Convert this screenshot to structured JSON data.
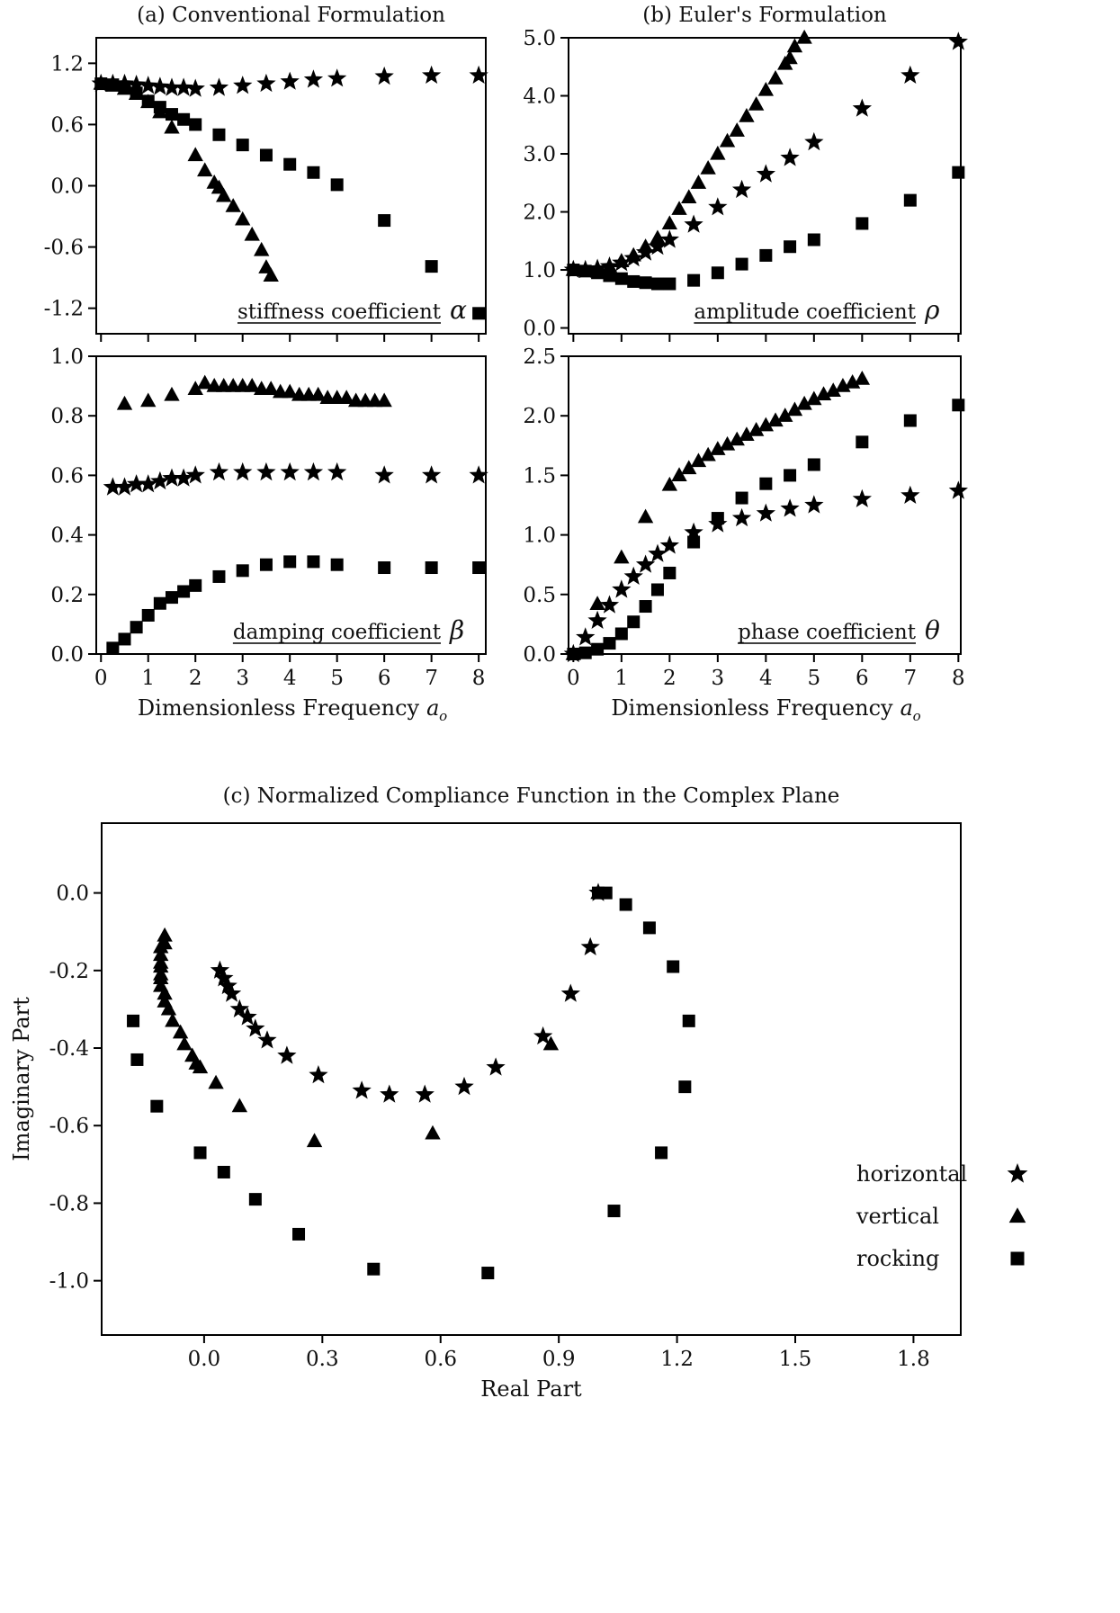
{
  "chart_data": [
    {
      "id": "a-top",
      "type": "scatter",
      "title": "(a) Conventional Formulation",
      "xlabel": "",
      "ylabel": "",
      "annotation": "stiffness coefficient",
      "annotation_symbol": "α",
      "xlim": [
        -0.1,
        8.15
      ],
      "ylim": [
        -1.45,
        1.45
      ],
      "xticks": [
        0,
        1,
        2,
        3,
        4,
        5,
        6,
        7,
        8
      ],
      "xtick_labels": [],
      "yticks": [
        1.2,
        0.6,
        0.0,
        -0.6,
        -1.2
      ],
      "ytick_labels": [
        "1.2",
        "0.6",
        "0.0",
        "-0.6",
        "-1.2"
      ],
      "series": [
        {
          "marker": "star",
          "x": [
            0,
            0.25,
            0.5,
            0.75,
            1,
            1.25,
            1.5,
            1.75,
            2,
            2.5,
            3,
            3.5,
            4,
            4.5,
            5,
            6,
            7,
            8
          ],
          "y": [
            1.0,
            1.0,
            1.0,
            0.99,
            0.98,
            0.97,
            0.96,
            0.96,
            0.95,
            0.96,
            0.98,
            1.0,
            1.02,
            1.04,
            1.05,
            1.07,
            1.08,
            1.08
          ]
        },
        {
          "marker": "triangle",
          "x": [
            0,
            0.25,
            0.5,
            0.75,
            1.0,
            1.25,
            1.5,
            2.0,
            2.2,
            2.4,
            2.5,
            2.6,
            2.8,
            3.0,
            3.2,
            3.4,
            3.5,
            3.6
          ],
          "y": [
            1.0,
            0.98,
            0.95,
            0.9,
            0.82,
            0.72,
            0.57,
            0.3,
            0.15,
            0.03,
            -0.02,
            -0.1,
            -0.2,
            -0.33,
            -0.48,
            -0.63,
            -0.8,
            -0.88
          ]
        },
        {
          "marker": "square",
          "x": [
            0,
            0.25,
            0.5,
            0.75,
            1.0,
            1.25,
            1.5,
            1.75,
            2.0,
            2.5,
            3.0,
            3.5,
            4.0,
            4.5,
            5.0,
            6.0,
            7.0,
            8.0
          ],
          "y": [
            1.0,
            0.99,
            0.96,
            0.91,
            0.83,
            0.77,
            0.7,
            0.65,
            0.6,
            0.5,
            0.4,
            0.3,
            0.21,
            0.13,
            0.01,
            -0.34,
            -0.79,
            -1.25
          ]
        }
      ]
    },
    {
      "id": "a-bottom",
      "type": "scatter",
      "title": "",
      "xlabel": "Dimensionless Frequency",
      "xlabel_symbol": "a",
      "xlabel_sub": "o",
      "ylabel": "",
      "annotation": "damping coefficient",
      "annotation_symbol": "β",
      "xlim": [
        -0.1,
        8.15
      ],
      "ylim": [
        0.0,
        1.0
      ],
      "xticks": [
        0,
        1,
        2,
        3,
        4,
        5,
        6,
        7,
        8
      ],
      "xtick_labels": [
        "0",
        "1",
        "2",
        "3",
        "4",
        "5",
        "6",
        "7",
        "8"
      ],
      "yticks": [
        0.0,
        0.2,
        0.4,
        0.6,
        0.8,
        1.0
      ],
      "ytick_labels": [
        "0.0",
        "0.2",
        "0.4",
        "0.6",
        "0.8",
        "1.0"
      ],
      "series": [
        {
          "marker": "triangle",
          "x": [
            0.5,
            1.0,
            1.5,
            2.0,
            2.2,
            2.4,
            2.6,
            2.8,
            3.0,
            3.2,
            3.4,
            3.6,
            3.8,
            4.0,
            4.2,
            4.4,
            4.6,
            4.8,
            5.0,
            5.2,
            5.4,
            5.6,
            5.8,
            6.0
          ],
          "y": [
            0.84,
            0.85,
            0.87,
            0.89,
            0.91,
            0.9,
            0.9,
            0.9,
            0.9,
            0.9,
            0.89,
            0.89,
            0.88,
            0.88,
            0.87,
            0.87,
            0.87,
            0.86,
            0.86,
            0.86,
            0.85,
            0.85,
            0.85,
            0.85
          ]
        },
        {
          "marker": "star",
          "x": [
            0.25,
            0.5,
            0.75,
            1.0,
            1.25,
            1.5,
            1.75,
            2.0,
            2.5,
            3.0,
            3.5,
            4.0,
            4.5,
            5.0,
            6.0,
            7.0,
            8.0
          ],
          "y": [
            0.56,
            0.56,
            0.57,
            0.57,
            0.58,
            0.59,
            0.59,
            0.6,
            0.61,
            0.61,
            0.61,
            0.61,
            0.61,
            0.61,
            0.6,
            0.6,
            0.6
          ]
        },
        {
          "marker": "square",
          "x": [
            0.25,
            0.5,
            0.75,
            1.0,
            1.25,
            1.5,
            1.75,
            2.0,
            2.5,
            3.0,
            3.5,
            4.0,
            4.5,
            5.0,
            6.0,
            7.0,
            8.0
          ],
          "y": [
            0.02,
            0.05,
            0.09,
            0.13,
            0.17,
            0.19,
            0.21,
            0.23,
            0.26,
            0.28,
            0.3,
            0.31,
            0.31,
            0.3,
            0.29,
            0.29,
            0.29
          ]
        }
      ]
    },
    {
      "id": "b-top",
      "type": "scatter",
      "title": "(b) Euler's Formulation",
      "xlabel": "",
      "ylabel": "",
      "annotation": "amplitude coefficient",
      "annotation_symbol": "ρ",
      "xlim": [
        -0.1,
        8.05
      ],
      "ylim": [
        -0.1,
        5.0
      ],
      "xticks": [
        0,
        1,
        2,
        3,
        4,
        5,
        6,
        7,
        8
      ],
      "xtick_labels": [],
      "yticks": [
        0.0,
        1.0,
        2.0,
        3.0,
        4.0,
        5.0
      ],
      "ytick_labels": [
        "0.0",
        "1.0",
        "2.0",
        "3.0",
        "4.0",
        "5.0"
      ],
      "series": [
        {
          "marker": "triangle",
          "x": [
            0,
            0.25,
            0.5,
            0.75,
            1.0,
            1.25,
            1.5,
            1.75,
            2.0,
            2.2,
            2.4,
            2.6,
            2.8,
            3.0,
            3.2,
            3.4,
            3.6,
            3.8,
            4.0,
            4.2,
            4.4,
            4.5,
            4.6,
            4.8
          ],
          "y": [
            1.0,
            1.0,
            1.02,
            1.06,
            1.15,
            1.25,
            1.4,
            1.55,
            1.8,
            2.05,
            2.25,
            2.5,
            2.75,
            3.0,
            3.22,
            3.4,
            3.65,
            3.85,
            4.1,
            4.3,
            4.55,
            4.65,
            4.85,
            5.0
          ]
        },
        {
          "marker": "star",
          "x": [
            0,
            0.25,
            0.5,
            0.75,
            1.0,
            1.25,
            1.5,
            1.75,
            2.0,
            2.5,
            3.0,
            3.5,
            4.0,
            4.5,
            5.0,
            6.0,
            7.0,
            8.0
          ],
          "y": [
            1.0,
            1.0,
            1.02,
            1.06,
            1.12,
            1.2,
            1.3,
            1.4,
            1.52,
            1.78,
            2.08,
            2.38,
            2.65,
            2.93,
            3.2,
            3.78,
            4.35,
            4.93
          ]
        },
        {
          "marker": "square",
          "x": [
            0,
            0.25,
            0.5,
            0.75,
            1.0,
            1.25,
            1.5,
            1.75,
            2.0,
            2.5,
            3.0,
            3.5,
            4.0,
            4.5,
            5.0,
            6.0,
            7.0,
            8.0
          ],
          "y": [
            1.0,
            0.98,
            0.95,
            0.9,
            0.85,
            0.8,
            0.78,
            0.76,
            0.76,
            0.82,
            0.95,
            1.1,
            1.25,
            1.4,
            1.52,
            1.8,
            2.2,
            2.68
          ]
        }
      ]
    },
    {
      "id": "b-bottom",
      "type": "scatter",
      "title": "",
      "xlabel": "Dimensionless Frequency",
      "xlabel_symbol": "a",
      "xlabel_sub": "o",
      "ylabel": "",
      "annotation": "phase coefficient",
      "annotation_symbol": "θ",
      "xlim": [
        -0.1,
        8.05
      ],
      "ylim": [
        0.0,
        2.5
      ],
      "xticks": [
        0,
        1,
        2,
        3,
        4,
        5,
        6,
        7,
        8
      ],
      "xtick_labels": [
        "0",
        "1",
        "2",
        "3",
        "4",
        "5",
        "6",
        "7",
        "8"
      ],
      "yticks": [
        0.0,
        0.5,
        1.0,
        1.5,
        2.0,
        2.5
      ],
      "ytick_labels": [
        "0.0",
        "0.5",
        "1.0",
        "1.5",
        "2.0",
        "2.5"
      ],
      "series": [
        {
          "marker": "triangle",
          "x": [
            0,
            0.5,
            1.0,
            1.5,
            2.0,
            2.2,
            2.4,
            2.6,
            2.8,
            3.0,
            3.2,
            3.4,
            3.6,
            3.8,
            4.0,
            4.2,
            4.4,
            4.6,
            4.8,
            5.0,
            5.2,
            5.4,
            5.6,
            5.8,
            6.0
          ],
          "y": [
            0.0,
            0.42,
            0.81,
            1.15,
            1.42,
            1.5,
            1.56,
            1.62,
            1.67,
            1.72,
            1.76,
            1.8,
            1.84,
            1.88,
            1.92,
            1.96,
            2.0,
            2.05,
            2.1,
            2.14,
            2.18,
            2.21,
            2.25,
            2.28,
            2.31
          ]
        },
        {
          "marker": "star",
          "x": [
            0,
            0.25,
            0.5,
            0.75,
            1.0,
            1.25,
            1.5,
            1.75,
            2.0,
            2.5,
            3.0,
            3.5,
            4.0,
            4.5,
            5.0,
            6.0,
            7.0,
            8.0
          ],
          "y": [
            0.0,
            0.14,
            0.28,
            0.41,
            0.54,
            0.65,
            0.75,
            0.84,
            0.91,
            1.02,
            1.09,
            1.14,
            1.18,
            1.22,
            1.25,
            1.3,
            1.33,
            1.37
          ]
        },
        {
          "marker": "square",
          "x": [
            0,
            0.25,
            0.5,
            0.75,
            1.0,
            1.25,
            1.5,
            1.75,
            2.0,
            2.5,
            3.0,
            3.5,
            4.0,
            4.5,
            5.0,
            6.0,
            7.0,
            8.0
          ],
          "y": [
            0.0,
            0.01,
            0.04,
            0.09,
            0.17,
            0.27,
            0.4,
            0.54,
            0.68,
            0.94,
            1.14,
            1.31,
            1.43,
            1.5,
            1.59,
            1.78,
            1.96,
            2.09
          ]
        }
      ]
    },
    {
      "id": "c",
      "type": "scatter",
      "title": "(c) Normalized Compliance Function in the Complex Plane",
      "xlabel": "Real Part",
      "ylabel": "Imaginary Part",
      "xlim": [
        -0.26,
        1.92
      ],
      "ylim": [
        -1.14,
        0.18
      ],
      "xticks": [
        0.0,
        0.3,
        0.6,
        0.9,
        1.2,
        1.5,
        1.8
      ],
      "xtick_labels": [
        "0.0",
        "0.3",
        "0.6",
        "0.9",
        "1.2",
        "1.5",
        "1.8"
      ],
      "yticks": [
        0.0,
        -0.2,
        -0.4,
        -0.6,
        -0.8,
        -1.0
      ],
      "ytick_labels": [
        "0.0",
        "-0.2",
        "-0.4",
        "-0.6",
        "-0.8",
        "-1.0"
      ],
      "legend": {
        "position": "lower-right",
        "entries": [
          {
            "label": "horizontal",
            "marker": "star"
          },
          {
            "label": "vertical",
            "marker": "triangle"
          },
          {
            "label": "rocking",
            "marker": "square"
          }
        ]
      },
      "series": [
        {
          "name": "horizontal",
          "marker": "star",
          "x": [
            0.04,
            0.05,
            0.06,
            0.07,
            0.09,
            0.11,
            0.13,
            0.16,
            0.21,
            0.29,
            0.4,
            0.47,
            0.56,
            0.66,
            0.74,
            0.86,
            0.93,
            0.98,
            1.0
          ],
          "y": [
            -0.2,
            -0.22,
            -0.24,
            -0.26,
            -0.3,
            -0.32,
            -0.35,
            -0.38,
            -0.42,
            -0.47,
            -0.51,
            -0.52,
            -0.52,
            -0.5,
            -0.45,
            -0.37,
            -0.26,
            -0.14,
            0.0
          ]
        },
        {
          "name": "vertical",
          "marker": "triangle",
          "x": [
            -0.1,
            -0.1,
            -0.11,
            -0.11,
            -0.11,
            -0.11,
            -0.11,
            -0.11,
            -0.11,
            -0.1,
            -0.1,
            -0.09,
            -0.08,
            -0.06,
            -0.05,
            -0.03,
            -0.02,
            -0.01,
            0.03,
            0.09,
            0.28,
            0.58,
            0.88,
            1.0
          ],
          "y": [
            -0.11,
            -0.13,
            -0.14,
            -0.16,
            -0.18,
            -0.19,
            -0.21,
            -0.22,
            -0.24,
            -0.26,
            -0.28,
            -0.3,
            -0.33,
            -0.36,
            -0.39,
            -0.42,
            -0.44,
            -0.45,
            -0.49,
            -0.55,
            -0.64,
            -0.62,
            -0.39,
            0.0
          ]
        },
        {
          "name": "rocking",
          "marker": "square",
          "x": [
            -0.18,
            -0.17,
            -0.12,
            -0.01,
            0.05,
            0.13,
            0.24,
            0.43,
            0.72,
            1.04,
            1.16,
            1.22,
            1.23,
            1.19,
            1.13,
            1.07,
            1.02,
            1.0
          ],
          "y": [
            -0.33,
            -0.43,
            -0.55,
            -0.67,
            -0.72,
            -0.79,
            -0.88,
            -0.97,
            -0.98,
            -0.82,
            -0.67,
            -0.5,
            -0.33,
            -0.19,
            -0.09,
            -0.03,
            0.0,
            0.0
          ]
        }
      ]
    }
  ]
}
